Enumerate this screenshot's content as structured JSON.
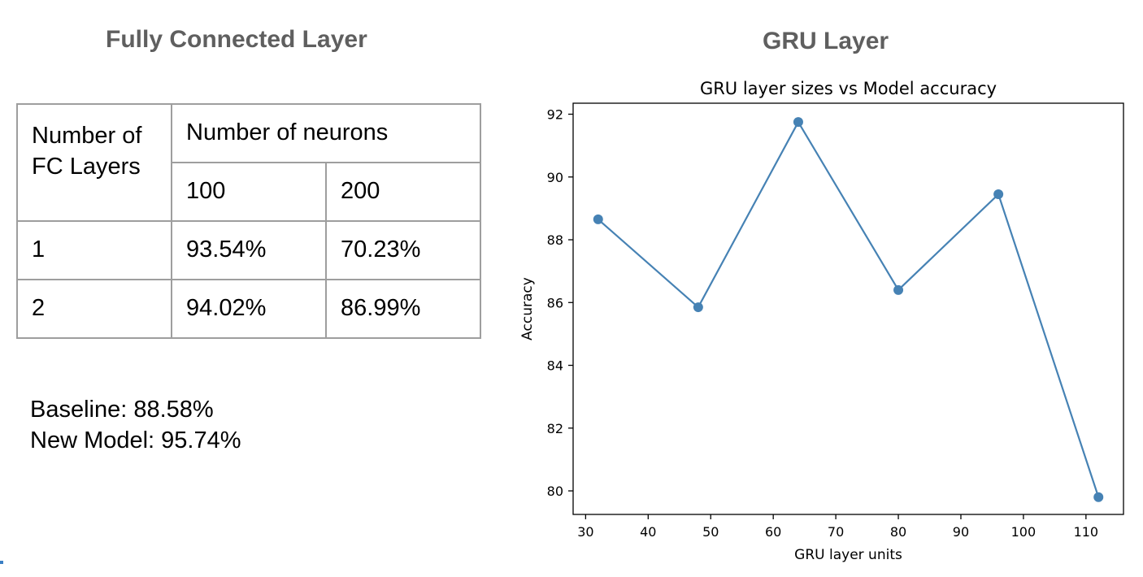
{
  "left_panel": {
    "title": "Fully Connected Layer",
    "table": {
      "row_header_line1": "Number of",
      "row_header_line2": "FC Layers",
      "group_header": "Number of neurons",
      "columns": [
        "100",
        "200"
      ],
      "rows": [
        {
          "layers": "1",
          "values": [
            "93.54%",
            "70.23%"
          ]
        },
        {
          "layers": "2",
          "values": [
            "94.02%",
            "86.99%"
          ]
        }
      ]
    },
    "baseline_text": "Baseline: 88.58%",
    "new_model_text": "New Model: 95.74%"
  },
  "right_panel": {
    "title": "GRU Layer"
  },
  "chart_data": {
    "type": "line",
    "title": "GRU layer sizes vs Model accuracy",
    "xlabel": "GRU layer units",
    "ylabel": "Accuracy",
    "x": [
      32,
      48,
      64,
      80,
      96,
      112
    ],
    "series": [
      {
        "values": [
          88.65,
          85.85,
          91.75,
          86.4,
          89.45,
          79.8
        ]
      }
    ],
    "xlim": [
      28.0,
      116.0
    ],
    "ylim": [
      79.25,
      92.35
    ],
    "xticks": [
      30,
      40,
      50,
      60,
      70,
      80,
      90,
      100,
      110
    ],
    "yticks": [
      80,
      82,
      84,
      86,
      88,
      90,
      92
    ],
    "grid": false,
    "markers": true,
    "line_color": "#4682b4"
  }
}
